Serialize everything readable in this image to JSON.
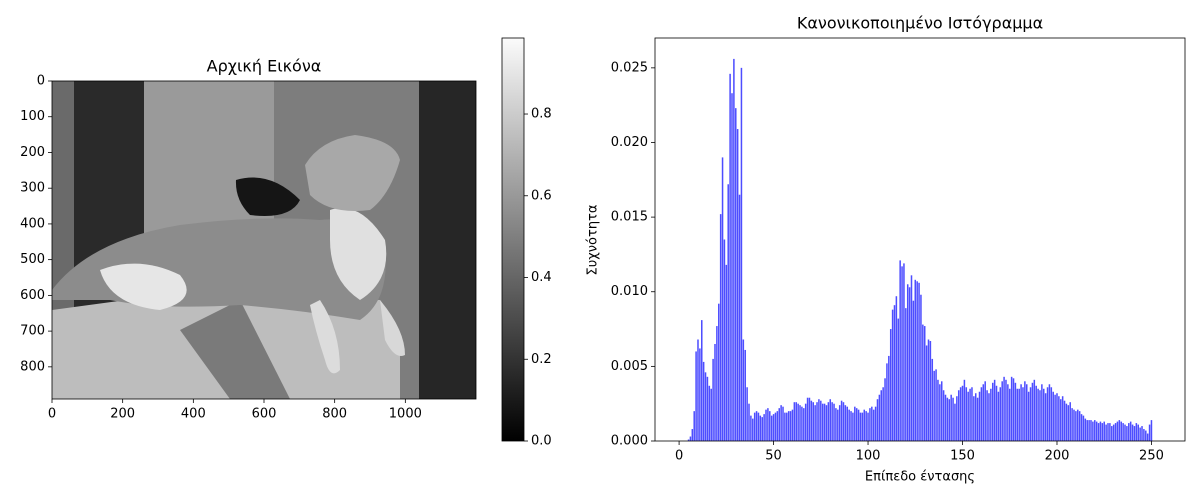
{
  "chart_data": [
    {
      "type": "image",
      "title": "Αρχική Εικόνα",
      "cmap": "gray",
      "xlim": [
        0,
        1200
      ],
      "ylim": [
        890,
        0
      ],
      "xticks": [
        0,
        200,
        400,
        600,
        800,
        1000
      ],
      "yticks": [
        0,
        100,
        200,
        300,
        400,
        500,
        600,
        700,
        800
      ],
      "colorbar": {
        "lim": [
          0,
          0.986
        ],
        "ticks": [
          {
            "value": 0,
            "label": "0.0"
          },
          0.2,
          0.4,
          0.6,
          0.8
        ]
      }
    },
    {
      "type": "bar",
      "title": "Κανονικοποιημένο Ιστόγραμμα",
      "xlabel": "Επίπεδο έντασης",
      "ylabel": "Συχνότητα",
      "color": "#4d4dff",
      "xlim": [
        -12.75,
        267.75
      ],
      "ylim": [
        0,
        0.027
      ],
      "xticks": [
        0,
        50,
        100,
        150,
        200,
        250
      ],
      "yticks": [
        {
          "value": 0,
          "label": "0.000"
        },
        0.005,
        {
          "value": 0.01,
          "label": "0.010"
        },
        0.015,
        {
          "value": 0.02,
          "label": "0.020"
        },
        0.025
      ],
      "x": [
        0,
        1,
        2,
        3,
        4,
        5,
        6,
        7,
        8,
        9,
        10,
        11,
        12,
        13,
        14,
        15,
        16,
        17,
        18,
        19,
        20,
        21,
        22,
        23,
        24,
        25,
        26,
        27,
        28,
        29,
        30,
        31,
        32,
        33,
        34,
        35,
        36,
        37,
        38,
        39,
        40,
        41,
        42,
        43,
        44,
        45,
        46,
        47,
        48,
        49,
        50,
        51,
        52,
        53,
        54,
        55,
        56,
        57,
        58,
        59,
        60,
        61,
        62,
        63,
        64,
        65,
        66,
        67,
        68,
        69,
        70,
        71,
        72,
        73,
        74,
        75,
        76,
        77,
        78,
        79,
        80,
        81,
        82,
        83,
        84,
        85,
        86,
        87,
        88,
        89,
        90,
        91,
        92,
        93,
        94,
        95,
        96,
        97,
        98,
        99,
        100,
        101,
        102,
        103,
        104,
        105,
        106,
        107,
        108,
        109,
        110,
        111,
        112,
        113,
        114,
        115,
        116,
        117,
        118,
        119,
        120,
        121,
        122,
        123,
        124,
        125,
        126,
        127,
        128,
        129,
        130,
        131,
        132,
        133,
        134,
        135,
        136,
        137,
        138,
        139,
        140,
        141,
        142,
        143,
        144,
        145,
        146,
        147,
        148,
        149,
        150,
        151,
        152,
        153,
        154,
        155,
        156,
        157,
        158,
        159,
        160,
        161,
        162,
        163,
        164,
        165,
        166,
        167,
        168,
        169,
        170,
        171,
        172,
        173,
        174,
        175,
        176,
        177,
        178,
        179,
        180,
        181,
        182,
        183,
        184,
        185,
        186,
        187,
        188,
        189,
        190,
        191,
        192,
        193,
        194,
        195,
        196,
        197,
        198,
        199,
        200,
        201,
        202,
        203,
        204,
        205,
        206,
        207,
        208,
        209,
        210,
        211,
        212,
        213,
        214,
        215,
        216,
        217,
        218,
        219,
        220,
        221,
        222,
        223,
        224,
        225,
        226,
        227,
        228,
        229,
        230,
        231,
        232,
        233,
        234,
        235,
        236,
        237,
        238,
        239,
        240,
        241,
        242,
        243,
        244,
        245,
        246,
        247,
        248,
        249,
        250,
        251,
        252,
        253,
        254,
        255
      ],
      "values": [
        0,
        0,
        0,
        0,
        0,
        0.0001,
        0.0003,
        0.0008,
        0.002,
        0.006,
        0.0068,
        0.0062,
        0.0081,
        0.0053,
        0.0046,
        0.0043,
        0.0037,
        0.0035,
        0.0055,
        0.0065,
        0.0077,
        0.0092,
        0.0152,
        0.019,
        0.0135,
        0.0118,
        0.0172,
        0.0246,
        0.0233,
        0.0256,
        0.0223,
        0.0209,
        0.0165,
        0.025,
        0.0068,
        0.0061,
        0.0036,
        0.0025,
        0.0017,
        0.0015,
        0.0019,
        0.002,
        0.0019,
        0.0017,
        0.0016,
        0.0018,
        0.0021,
        0.0022,
        0.002,
        0.0017,
        0.0018,
        0.0019,
        0.002,
        0.0022,
        0.0024,
        0.0023,
        0.0019,
        0.0019,
        0.002,
        0.002,
        0.0021,
        0.0026,
        0.0026,
        0.0025,
        0.0024,
        0.0023,
        0.0022,
        0.0025,
        0.0029,
        0.0029,
        0.0027,
        0.0026,
        0.0024,
        0.0026,
        0.0028,
        0.0027,
        0.0025,
        0.0025,
        0.0024,
        0.0026,
        0.0028,
        0.0026,
        0.0025,
        0.0022,
        0.0021,
        0.0024,
        0.0027,
        0.0026,
        0.0024,
        0.0023,
        0.0021,
        0.002,
        0.0019,
        0.0023,
        0.0022,
        0.0021,
        0.0019,
        0.0019,
        0.0021,
        0.002,
        0.0019,
        0.0022,
        0.0023,
        0.0021,
        0.0023,
        0.0028,
        0.0031,
        0.0034,
        0.0036,
        0.0042,
        0.0052,
        0.0057,
        0.0075,
        0.0088,
        0.0091,
        0.0097,
        0.0082,
        0.0121,
        0.0117,
        0.0119,
        0.0089,
        0.0105,
        0.0103,
        0.0111,
        0.0094,
        0.0108,
        0.0107,
        0.0106,
        0.0098,
        0.0078,
        0.0077,
        0.0064,
        0.0068,
        0.0067,
        0.0055,
        0.0047,
        0.0048,
        0.0041,
        0.0038,
        0.004,
        0.0034,
        0.0031,
        0.0029,
        0.0028,
        0.0031,
        0.0029,
        0.0025,
        0.003,
        0.0034,
        0.0036,
        0.0037,
        0.0041,
        0.0036,
        0.0033,
        0.0035,
        0.0036,
        0.003,
        0.0032,
        0.0029,
        0.0033,
        0.0036,
        0.0038,
        0.004,
        0.0034,
        0.0032,
        0.0035,
        0.0039,
        0.0041,
        0.0037,
        0.0033,
        0.0036,
        0.004,
        0.0043,
        0.0041,
        0.0038,
        0.0035,
        0.0043,
        0.0042,
        0.0039,
        0.0035,
        0.0035,
        0.0038,
        0.0036,
        0.004,
        0.0038,
        0.0033,
        0.0036,
        0.0039,
        0.0041,
        0.0037,
        0.0035,
        0.0034,
        0.0038,
        0.0035,
        0.0032,
        0.0036,
        0.0038,
        0.0036,
        0.0033,
        0.0031,
        0.0032,
        0.003,
        0.0028,
        0.003,
        0.0027,
        0.0025,
        0.0024,
        0.0026,
        0.0022,
        0.0021,
        0.002,
        0.0021,
        0.002,
        0.0018,
        0.0017,
        0.0015,
        0.0014,
        0.0014,
        0.0014,
        0.0013,
        0.0014,
        0.0013,
        0.0012,
        0.0013,
        0.0012,
        0.0013,
        0.0011,
        0.0012,
        0.0012,
        0.001,
        0.0011,
        0.0012,
        0.0013,
        0.0014,
        0.0013,
        0.0012,
        0.0011,
        0.001,
        0.0012,
        0.0013,
        0.0011,
        0.001,
        0.0012,
        0.0011,
        0.0009,
        0.001,
        0.0008,
        0.0007,
        0.0005,
        0.0011,
        0.0014,
        0,
        0,
        0,
        0,
        0
      ]
    }
  ]
}
